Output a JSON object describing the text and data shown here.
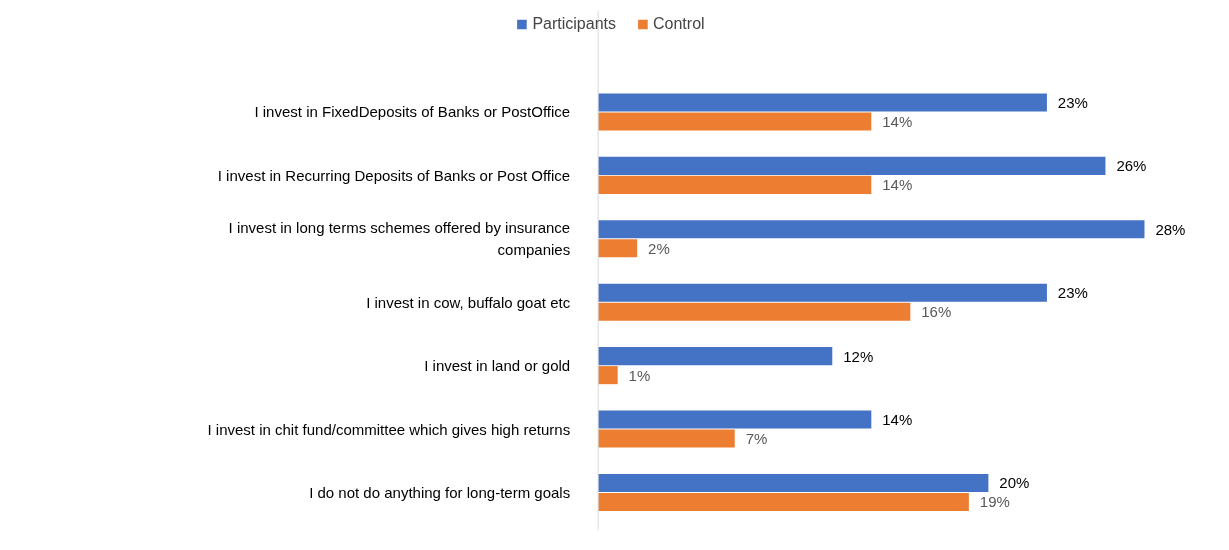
{
  "chart_data": {
    "type": "bar",
    "orientation": "horizontal",
    "legend": "top",
    "categories": [
      "I invest in FixedDeposits of Banks or PostOffice",
      "I invest in Recurring Deposits of Banks or Post Office",
      "I invest in long terms schemes offered by insurance companies",
      "I invest in cow, buffalo goat etc",
      "I invest in land or gold",
      "I invest in chit fund/committee which gives high returns",
      "I do not do anything for long-term goals"
    ],
    "series": [
      {
        "name": "Participants",
        "color": "#4472c4",
        "values": [
          23,
          26,
          28,
          23,
          12,
          14,
          20
        ],
        "value_labels": [
          "23%",
          "26%",
          "28%",
          "23%",
          "12%",
          "14%",
          "20%"
        ]
      },
      {
        "name": "Control",
        "color": "#ed7d31",
        "values": [
          14,
          14,
          2,
          16,
          1,
          7,
          19
        ],
        "value_labels": [
          "14%",
          "14%",
          "2%",
          "16%",
          "1%",
          "7%",
          "19%"
        ]
      }
    ]
  }
}
